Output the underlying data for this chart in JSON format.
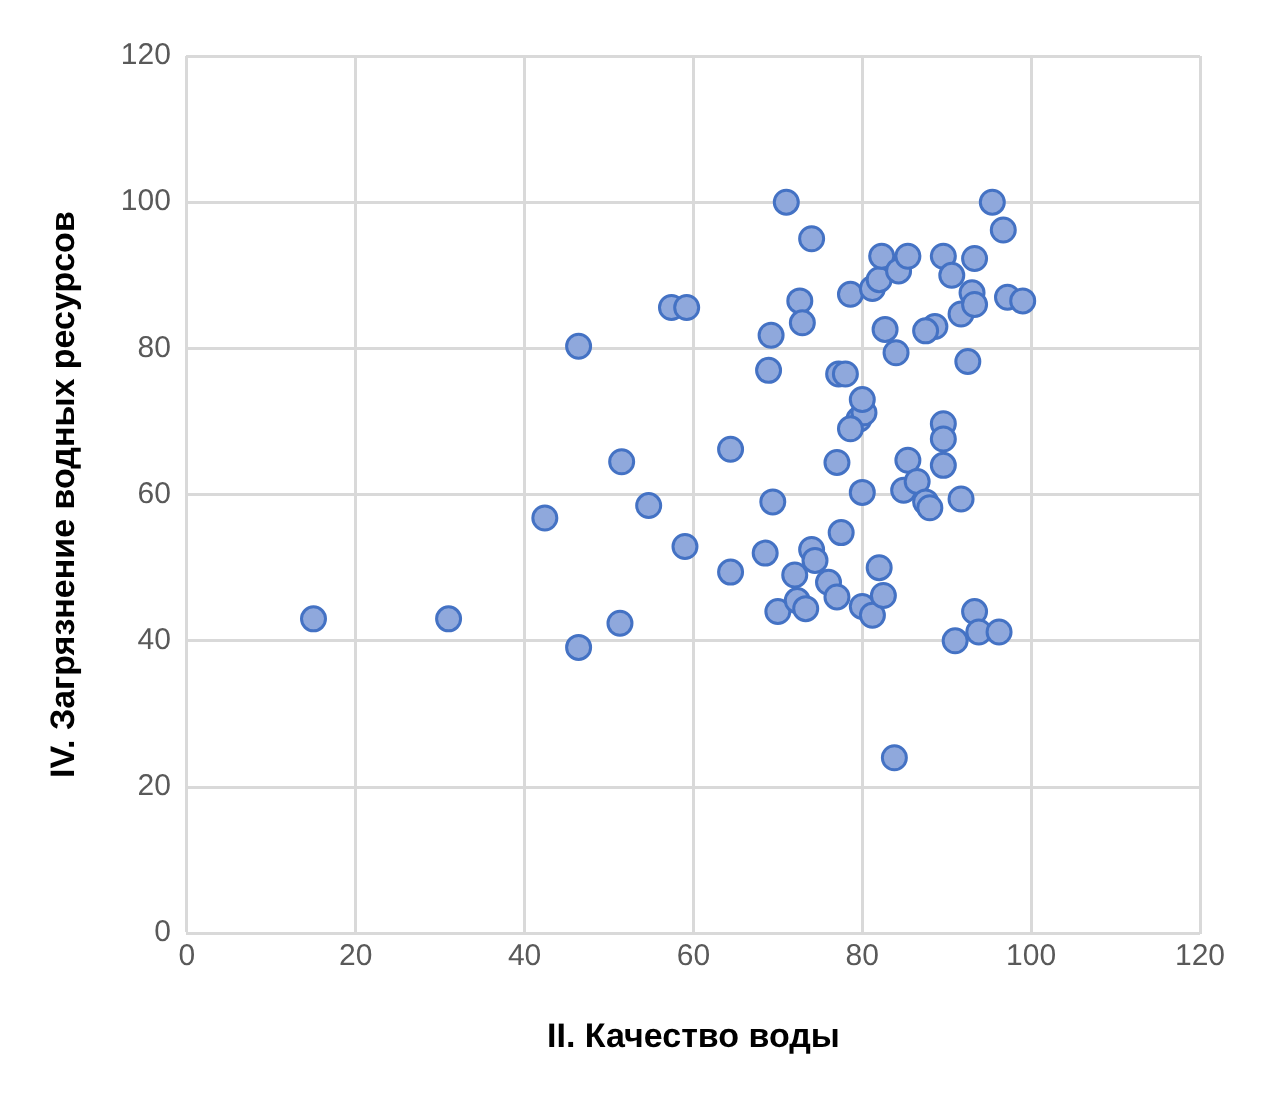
{
  "chart_data": {
    "type": "scatter",
    "xlabel": "II. Качество воды",
    "ylabel": "IV. Загрязнение водных ресурсов",
    "x": [
      15,
      31,
      42.4,
      46.4,
      46.4,
      51.5,
      51.3,
      54.7,
      57.4,
      59.2,
      59,
      64.4,
      64.4,
      71,
      74,
      72.6,
      72.9,
      69.2,
      68.9,
      69.4,
      68.5,
      70,
      72,
      72.3,
      74,
      73.3,
      74.4,
      76,
      77,
      77.5,
      77,
      77.2,
      78,
      78.6,
      79.6,
      80.2,
      80,
      80,
      78.6,
      80,
      81.2,
      81.2,
      82,
      82.3,
      82.7,
      84,
      84.3,
      85.4,
      85.4,
      84.9,
      86.5,
      87.5,
      88,
      88.6,
      87.5,
      82,
      82.5,
      83.8,
      89.6,
      89.6,
      89.6,
      89.6,
      90.6,
      91.7,
      91.7,
      91,
      93,
      93.3,
      93.3,
      92.5,
      93.3,
      93.8,
      95.4,
      96.7,
      97.2,
      99,
      96.2
    ],
    "series": [
      {
        "color": "#8fa8dc",
        "values": [
          43,
          43,
          56.8,
          39.1,
          80.3,
          64.5,
          42.4,
          58.5,
          85.6,
          85.6,
          52.9,
          49.4,
          66.2,
          100,
          95,
          86.5,
          83.5,
          81.8,
          77,
          59,
          52,
          44,
          49,
          45.5,
          52.5,
          44.4,
          51,
          48,
          46,
          54.8,
          64.4,
          76.5,
          76.5,
          87.4,
          70.3,
          71.2,
          73,
          60.3,
          69,
          44.7,
          43.5,
          88.2,
          89.4,
          92.6,
          82.6,
          79.4,
          90.6,
          92.6,
          64.7,
          60.6,
          61.8,
          59,
          58.2,
          83,
          82.4,
          50,
          46.2,
          24,
          92.6,
          69.7,
          67.6,
          64,
          90,
          84.7,
          59.4,
          40,
          87.6,
          92.3,
          86,
          78.2,
          44,
          41.2,
          100,
          96.2,
          87,
          86.5,
          41.2
        ]
      }
    ],
    "xlim": [
      0,
      120
    ],
    "xticks": [
      0,
      20,
      40,
      60,
      80,
      100,
      120
    ],
    "ylim": [
      0,
      120
    ],
    "yticks": [
      0,
      20,
      40,
      60,
      80,
      100,
      120
    ],
    "grid": true,
    "legend": false,
    "marker": "circle"
  }
}
